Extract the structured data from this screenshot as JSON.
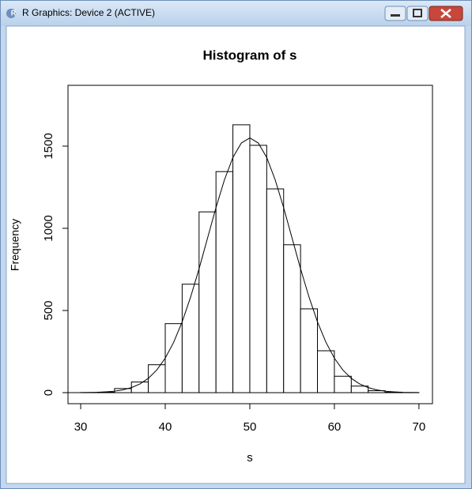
{
  "window": {
    "title": "R Graphics: Device 2 (ACTIVE)"
  },
  "chart_data": {
    "type": "histogram",
    "title": "Histogram of s",
    "x_label": "s",
    "y_label": "Frequency",
    "bins": [
      28,
      30,
      32,
      34,
      36,
      38,
      40,
      42,
      44,
      46,
      48,
      50,
      52,
      54,
      56,
      58,
      60,
      62,
      64,
      66,
      68,
      70
    ],
    "values": [
      0,
      1,
      3,
      25,
      65,
      170,
      420,
      660,
      1100,
      1345,
      1630,
      1505,
      1240,
      900,
      510,
      255,
      100,
      40,
      12,
      3,
      1
    ],
    "line": {
      "x": [
        28,
        29,
        30,
        31,
        32,
        33,
        34,
        35,
        36,
        37,
        38,
        39,
        40,
        41,
        42,
        43,
        44,
        45,
        46,
        47,
        48,
        49,
        50,
        51,
        52,
        53,
        54,
        55,
        56,
        57,
        58,
        59,
        60,
        61,
        62,
        63,
        64,
        65,
        66,
        67,
        68,
        69,
        70
      ],
      "y": [
        0,
        0,
        0.5,
        1,
        2,
        5,
        9,
        17,
        31,
        53,
        87,
        138,
        210,
        307,
        431,
        582,
        754,
        940,
        1126,
        1295,
        1431,
        1519,
        1550,
        1519,
        1431,
        1295,
        1126,
        940,
        754,
        582,
        431,
        307,
        210,
        138,
        87,
        53,
        31,
        17,
        9,
        5,
        2,
        1,
        0.5
      ]
    },
    "xlim": [
      28.5,
      71.6
    ],
    "ylim": [
      -67,
      1870
    ],
    "xticks": [
      30,
      40,
      50,
      60,
      70
    ],
    "yticks": [
      0,
      500,
      1000,
      1500
    ],
    "color": "#ffffff"
  }
}
